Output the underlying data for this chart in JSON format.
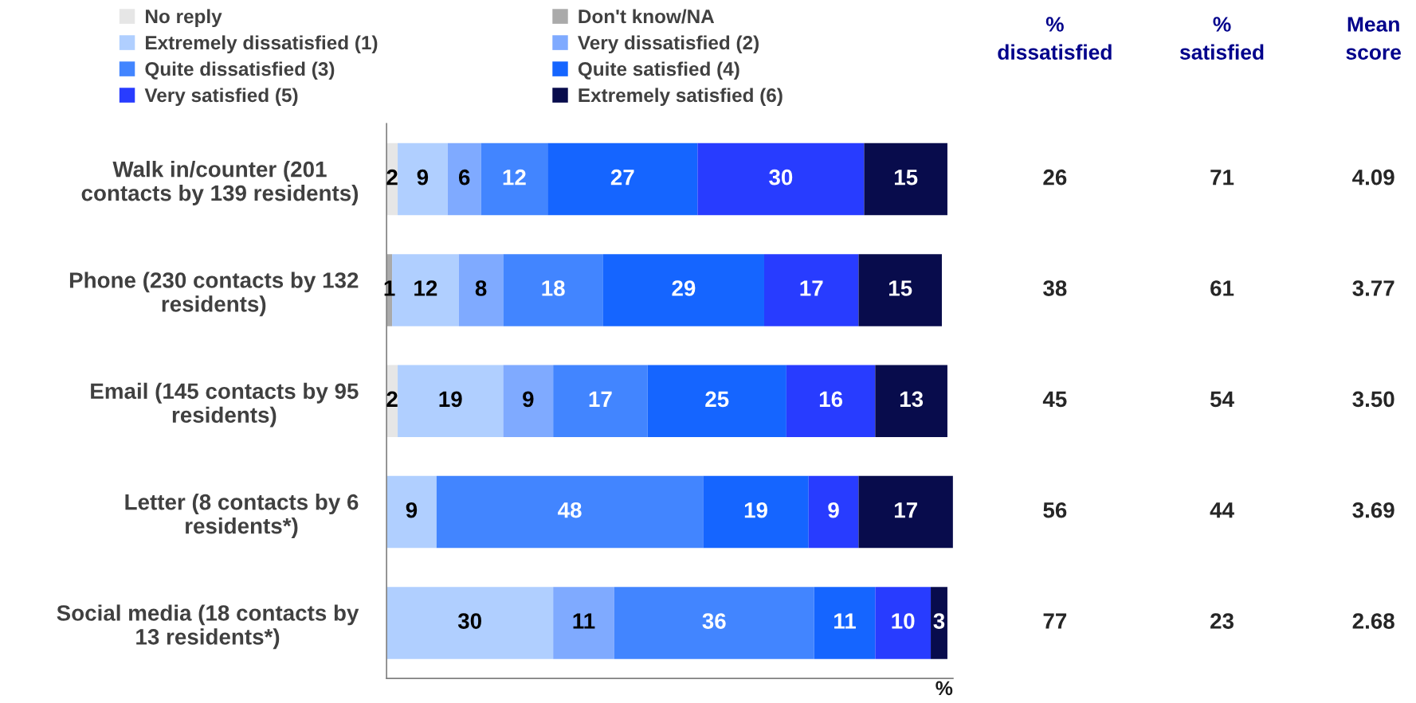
{
  "chart_data": {
    "type": "bar",
    "orientation": "horizontal",
    "stacked": true,
    "data_labels": true,
    "legend": "top",
    "tick_labels": "y",
    "xlabel": "%",
    "categories": [
      "Walk in/counter (201\ncontacts by 139 residents)",
      "Phone (230 contacts by 132\nresidents)",
      "Email (145 contacts by 95\nresidents)",
      "Letter (8 contacts by 6\nresidents*)",
      "Social media (18 contacts by\n13 residents*)"
    ],
    "series": [
      {
        "name": "No reply",
        "color": "#e6e6e6",
        "values": [
          2,
          null,
          2,
          null,
          null
        ]
      },
      {
        "name": "Don't know/NA",
        "color": "#aaaaaa",
        "values": [
          null,
          1,
          null,
          null,
          null
        ]
      },
      {
        "name": "Extremely dissatisfied (1)",
        "color": "#b0cfff",
        "values": [
          9,
          12,
          19,
          9,
          30
        ]
      },
      {
        "name": "Very dissatisfied (2)",
        "color": "#7faaff",
        "values": [
          6,
          8,
          9,
          null,
          11
        ]
      },
      {
        "name": "Quite dissatisfied (3)",
        "color": "#4285ff",
        "values": [
          12,
          18,
          17,
          48,
          36
        ]
      },
      {
        "name": "Quite satisfied (4)",
        "color": "#1565ff",
        "values": [
          27,
          29,
          25,
          19,
          11
        ]
      },
      {
        "name": "Very satisfied (5)",
        "color": "#283cff",
        "values": [
          30,
          17,
          16,
          9,
          10
        ]
      },
      {
        "name": "Extremely satisfied (6)",
        "color": "#080c4c",
        "values": [
          15,
          15,
          13,
          17,
          3
        ]
      }
    ],
    "annotations": [
      "%\ndissatisfied",
      "%\nsatisfied",
      "Mean\nscore",
      "26",
      "71",
      "4.09",
      "38",
      "61",
      "3.77",
      "45",
      "54",
      "3.50",
      "56",
      "44",
      "3.69",
      "77",
      "23",
      "2.68"
    ]
  }
}
